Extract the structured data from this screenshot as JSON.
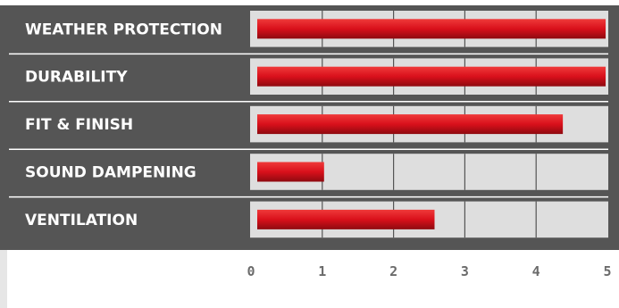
{
  "chart_data": {
    "type": "bar",
    "orientation": "horizontal",
    "categories": [
      "WEATHER PROTECTION",
      "DURABILITY",
      "FIT & FINISH",
      "SOUND DAMPENING",
      "VENTILATION"
    ],
    "values": [
      4.95,
      4.95,
      4.35,
      1.0,
      2.55
    ],
    "xlim": [
      0,
      5
    ],
    "xticks": [
      "0",
      "1",
      "2",
      "3",
      "4",
      "5"
    ],
    "title": "",
    "xlabel": "",
    "ylabel": "",
    "grid": true,
    "legend": "none",
    "colors": {
      "panel": "#555555",
      "track": "#dedede",
      "bar": "#d9101b",
      "bar_highlight": "#ef3a3a",
      "bar_shadow": "#8e0a10",
      "separator": "#ffffff",
      "side_strip": "#e6e6e6",
      "tick_text": "#6b6b6b",
      "label_text": "#ffffff"
    }
  }
}
